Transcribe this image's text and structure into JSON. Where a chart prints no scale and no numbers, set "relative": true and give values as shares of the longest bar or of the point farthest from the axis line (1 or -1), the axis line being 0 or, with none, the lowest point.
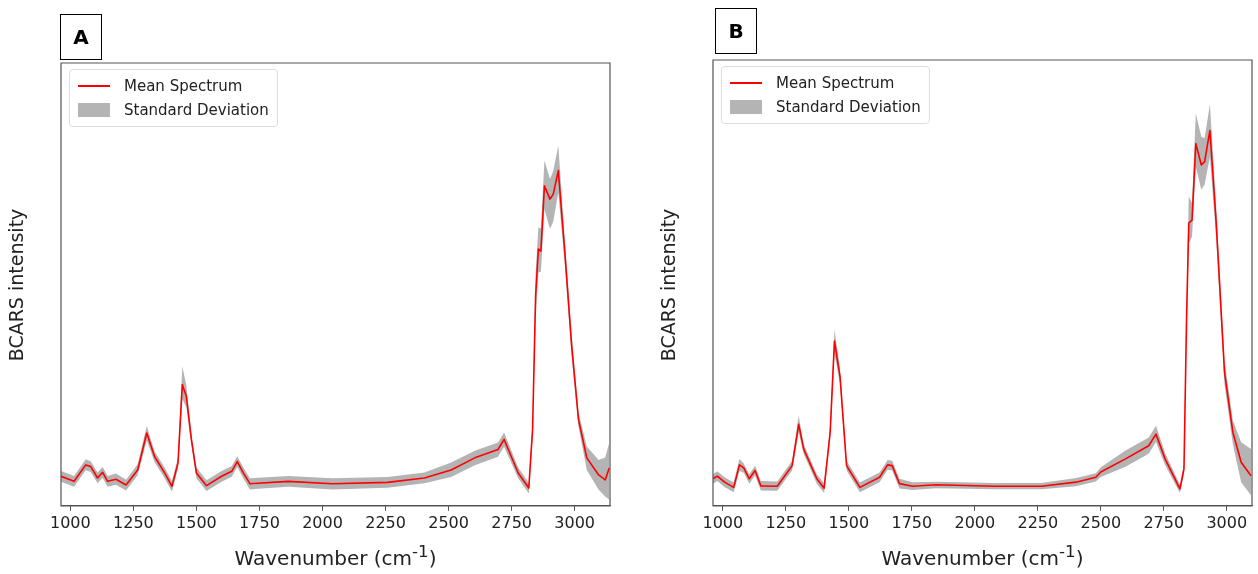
{
  "chart_data": [
    {
      "type": "line",
      "title": "A",
      "xlabel": "Wavenumber (cm$^{-1}$)",
      "ylabel": "BCARS intensity",
      "relative": true,
      "xlim": [
        963,
        3140
      ],
      "xticks": [
        1000,
        1250,
        1500,
        1750,
        2000,
        2250,
        2500,
        2750,
        3000
      ],
      "grid": false,
      "legend": "top left",
      "annotations": [
        "Standard Deviation"
      ],
      "series": [
        {
          "name": "Mean Spectrum",
          "color": "#ff0000",
          "x": [
            963,
            1015,
            1061,
            1081,
            1108,
            1128,
            1148,
            1181,
            1221,
            1267,
            1303,
            1334,
            1374,
            1403,
            1427,
            1444,
            1460,
            1480,
            1500,
            1540,
            1600,
            1640,
            1662,
            1686,
            1712,
            1865,
            2038,
            2258,
            2404,
            2510,
            2604,
            2696,
            2720,
            2776,
            2818,
            2833,
            2845,
            2856,
            2866,
            2880,
            2902,
            2915,
            2935,
            2962,
            2988,
            3015,
            3048,
            3095,
            3121,
            3137
          ],
          "values": [
            0.088,
            0.073,
            0.122,
            0.117,
            0.083,
            0.1,
            0.073,
            0.079,
            0.062,
            0.107,
            0.217,
            0.147,
            0.098,
            0.058,
            0.128,
            0.362,
            0.327,
            0.198,
            0.098,
            0.06,
            0.088,
            0.103,
            0.132,
            0.098,
            0.066,
            0.073,
            0.066,
            0.07,
            0.083,
            0.107,
            0.143,
            0.168,
            0.198,
            0.098,
            0.053,
            0.228,
            0.626,
            0.766,
            0.76,
            0.955,
            0.915,
            0.93,
            1.0,
            0.745,
            0.477,
            0.258,
            0.143,
            0.092,
            0.077,
            0.113
          ],
          "lower": [
            0.072,
            0.057,
            0.106,
            0.101,
            0.067,
            0.084,
            0.057,
            0.063,
            0.046,
            0.091,
            0.195,
            0.131,
            0.082,
            0.042,
            0.112,
            0.319,
            0.294,
            0.182,
            0.082,
            0.044,
            0.072,
            0.087,
            0.116,
            0.082,
            0.049,
            0.057,
            0.049,
            0.054,
            0.067,
            0.086,
            0.121,
            0.146,
            0.176,
            0.082,
            0.037,
            0.206,
            0.562,
            0.696,
            0.698,
            0.885,
            0.826,
            0.848,
            0.935,
            0.709,
            0.446,
            0.236,
            0.107,
            0.048,
            0.028,
            0.018
          ],
          "upper": [
            0.104,
            0.089,
            0.139,
            0.133,
            0.099,
            0.116,
            0.089,
            0.096,
            0.078,
            0.124,
            0.238,
            0.163,
            0.114,
            0.074,
            0.144,
            0.416,
            0.359,
            0.214,
            0.114,
            0.076,
            0.104,
            0.119,
            0.148,
            0.114,
            0.082,
            0.089,
            0.082,
            0.086,
            0.099,
            0.129,
            0.164,
            0.189,
            0.219,
            0.114,
            0.069,
            0.249,
            0.691,
            0.83,
            0.827,
            1.03,
            0.975,
            0.999,
            1.074,
            0.784,
            0.51,
            0.279,
            0.177,
            0.137,
            0.144,
            0.188
          ]
        }
      ]
    },
    {
      "type": "line",
      "title": "B",
      "xlabel": "Wavenumber (cm$^{-1}$)",
      "ylabel": "BCARS intensity",
      "relative": true,
      "xlim": [
        961,
        3100
      ],
      "xticks": [
        1000,
        1250,
        1500,
        1750,
        2000,
        2250,
        2500,
        2750,
        3000
      ],
      "grid": false,
      "legend": "top left",
      "annotations": [
        "Standard Deviation"
      ],
      "series": [
        {
          "name": "Mean Spectrum",
          "color": "#ff0000",
          "x": [
            961,
            978,
            1007,
            1043,
            1066,
            1083,
            1105,
            1128,
            1151,
            1216,
            1275,
            1301,
            1321,
            1373,
            1402,
            1426,
            1443,
            1465,
            1491,
            1544,
            1622,
            1654,
            1672,
            1701,
            1753,
            1845,
            2080,
            2264,
            2402,
            2480,
            2500,
            2598,
            2690,
            2719,
            2755,
            2814,
            2830,
            2840,
            2849,
            2862,
            2877,
            2899,
            2912,
            2933,
            2958,
            2991,
            3024,
            3057,
            3096
          ],
          "values": [
            0.072,
            0.079,
            0.063,
            0.049,
            0.109,
            0.101,
            0.072,
            0.094,
            0.053,
            0.052,
            0.107,
            0.217,
            0.151,
            0.072,
            0.047,
            0.196,
            0.439,
            0.345,
            0.107,
            0.049,
            0.076,
            0.109,
            0.107,
            0.059,
            0.052,
            0.056,
            0.052,
            0.052,
            0.063,
            0.076,
            0.09,
            0.125,
            0.16,
            0.191,
            0.125,
            0.045,
            0.098,
            0.488,
            0.753,
            0.761,
            0.965,
            0.908,
            0.917,
            1.0,
            0.753,
            0.355,
            0.196,
            0.116,
            0.08
          ],
          "lower": [
            0.059,
            0.066,
            0.05,
            0.036,
            0.093,
            0.088,
            0.059,
            0.081,
            0.041,
            0.04,
            0.094,
            0.196,
            0.138,
            0.059,
            0.034,
            0.18,
            0.406,
            0.324,
            0.094,
            0.036,
            0.063,
            0.096,
            0.094,
            0.046,
            0.042,
            0.047,
            0.044,
            0.044,
            0.052,
            0.065,
            0.077,
            0.104,
            0.139,
            0.17,
            0.109,
            0.034,
            0.086,
            0.449,
            0.699,
            0.717,
            0.903,
            0.842,
            0.856,
            0.929,
            0.71,
            0.323,
            0.164,
            0.063,
            0.028
          ],
          "upper": [
            0.084,
            0.092,
            0.076,
            0.062,
            0.125,
            0.113,
            0.084,
            0.107,
            0.066,
            0.065,
            0.12,
            0.24,
            0.164,
            0.084,
            0.06,
            0.212,
            0.47,
            0.367,
            0.12,
            0.062,
            0.089,
            0.122,
            0.12,
            0.072,
            0.063,
            0.064,
            0.061,
            0.061,
            0.074,
            0.087,
            0.103,
            0.147,
            0.182,
            0.213,
            0.141,
            0.056,
            0.111,
            0.524,
            0.824,
            0.807,
            1.045,
            0.983,
            0.979,
            1.07,
            0.796,
            0.387,
            0.228,
            0.169,
            0.151
          ]
        }
      ]
    }
  ]
}
